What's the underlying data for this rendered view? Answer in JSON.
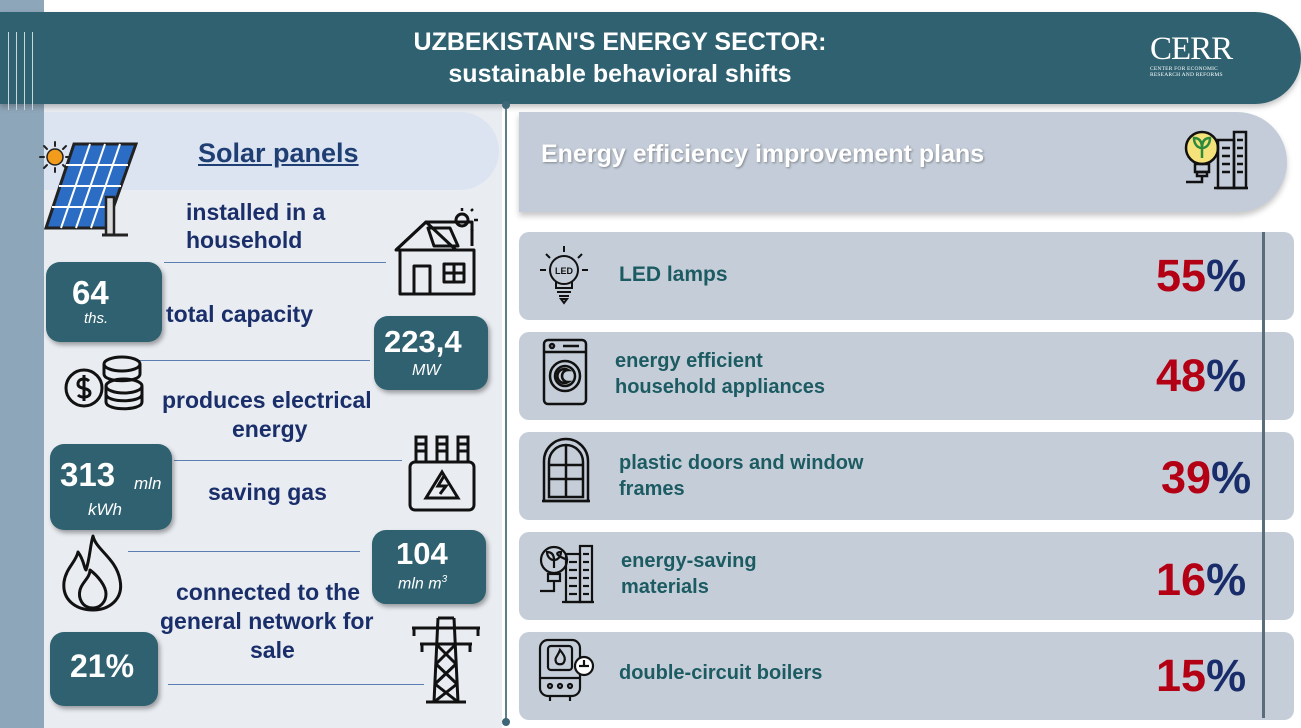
{
  "header": {
    "title_line1": "UZBEKISTAN'S ENERGY SECTOR:",
    "title_line2": "sustainable behavioral shifts",
    "logo_text": "CERR",
    "logo_sub_line1": "CENTER FOR ECONOMIC",
    "logo_sub_line2": "RESEARCH AND REFORMS"
  },
  "solar": {
    "title": "Solar panels",
    "installed_label_1": "installed in a",
    "installed_label_2": "household",
    "installed_value": "64",
    "installed_unit": "ths.",
    "capacity_label": "total capacity",
    "capacity_value": "223,4",
    "capacity_unit": "MW",
    "energy_label_1": "produces electrical",
    "energy_label_2": "energy",
    "energy_value": "313",
    "energy_unit_1": "mln",
    "energy_unit_2": "kWh",
    "gas_label": "saving gas",
    "gas_value": "104",
    "gas_unit": "mln m",
    "gas_unit_sup": "3",
    "network_label_1": "connected to the",
    "network_label_2": "general network for",
    "network_label_3": "sale",
    "network_value": "21%"
  },
  "efficiency": {
    "title": "Energy efficiency improvement plans",
    "items": [
      {
        "label_1": "LED lamps",
        "label_2": "",
        "value": "55",
        "pct": "%",
        "icon": "led-bulb-icon"
      },
      {
        "label_1": "energy efficient",
        "label_2": "household appliances",
        "value": "48",
        "pct": "%",
        "icon": "washing-machine-icon"
      },
      {
        "label_1": "plastic doors and window",
        "label_2": "frames",
        "value": "39",
        "pct": "%",
        "icon": "window-icon"
      },
      {
        "label_1": "energy-saving",
        "label_2": "materials",
        "value": "16",
        "pct": "%",
        "icon": "eco-building-icon"
      },
      {
        "label_1": "double-circuit boilers",
        "label_2": "",
        "value": "15",
        "pct": "%",
        "icon": "boiler-icon"
      }
    ]
  },
  "colors": {
    "header_bg": "#2f6170",
    "value_red": "#b40014",
    "text_navy": "#1a2e6a",
    "row_bg": "#c5ced8"
  }
}
